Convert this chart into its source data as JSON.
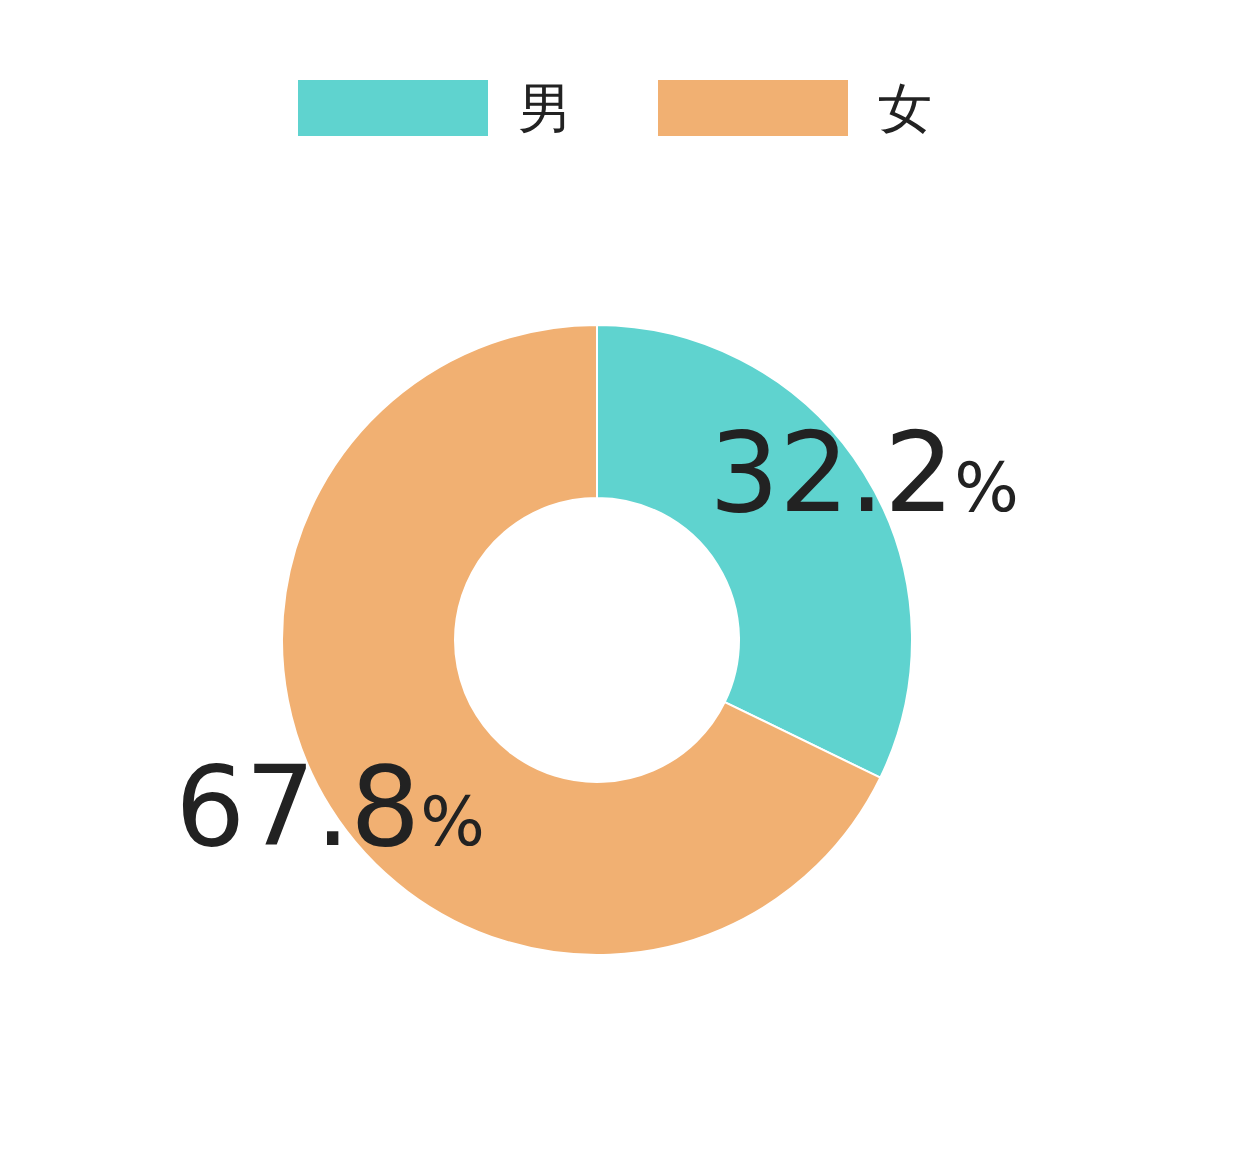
{
  "chart_data": {
    "type": "donut",
    "categories": [
      "男",
      "女"
    ],
    "values": [
      32.2,
      67.8
    ],
    "value_labels": [
      "32.2%",
      "67.8%"
    ],
    "colors": [
      "#5fd3cf",
      "#f1b072"
    ],
    "legend": "top"
  }
}
